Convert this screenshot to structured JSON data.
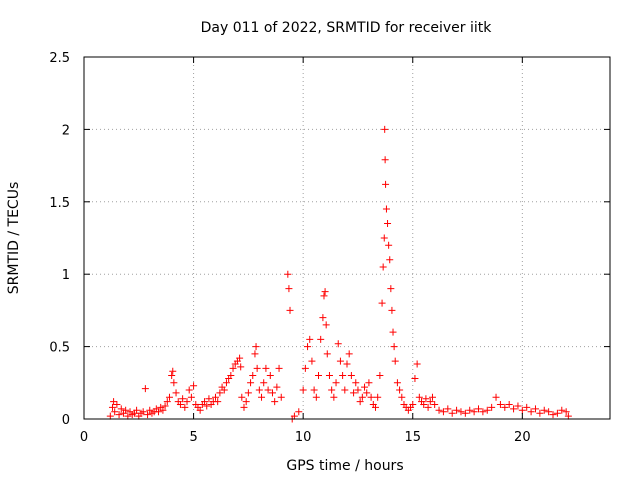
{
  "chart_data": {
    "type": "scatter",
    "title": "Day 011 of 2022, SRMTID for receiver iitk",
    "xlabel": "GPS time / hours",
    "ylabel": "SRMTID / TECUs",
    "xlim": [
      0,
      24
    ],
    "ylim": [
      0,
      2.5
    ],
    "xticks": [
      0,
      5,
      10,
      15,
      20
    ],
    "yticks": [
      0,
      0.5,
      1,
      1.5,
      2,
      2.5
    ],
    "xtick_labels": [
      "0",
      "5",
      "10",
      "15",
      "20"
    ],
    "ytick_labels": [
      "0",
      "0.5",
      "1",
      "1.5",
      "2",
      "2.5"
    ],
    "grid": true,
    "marker": "+",
    "color": "#ff0000",
    "series": [
      {
        "points": [
          [
            1.2,
            0.02
          ],
          [
            1.3,
            0.08
          ],
          [
            1.35,
            0.12
          ],
          [
            1.4,
            0.05
          ],
          [
            1.5,
            0.1
          ],
          [
            1.6,
            0.03
          ],
          [
            1.7,
            0.07
          ],
          [
            1.8,
            0.04
          ],
          [
            1.9,
            0.06
          ],
          [
            2.0,
            0.02
          ],
          [
            2.1,
            0.05
          ],
          [
            2.2,
            0.03
          ],
          [
            2.3,
            0.04
          ],
          [
            2.4,
            0.06
          ],
          [
            2.5,
            0.02
          ],
          [
            2.6,
            0.04
          ],
          [
            2.7,
            0.05
          ],
          [
            2.8,
            0.21
          ],
          [
            2.9,
            0.03
          ],
          [
            3.0,
            0.06
          ],
          [
            3.1,
            0.04
          ],
          [
            3.2,
            0.05
          ],
          [
            3.3,
            0.07
          ],
          [
            3.4,
            0.05
          ],
          [
            3.5,
            0.08
          ],
          [
            3.6,
            0.06
          ],
          [
            3.7,
            0.09
          ],
          [
            3.8,
            0.12
          ],
          [
            3.9,
            0.15
          ],
          [
            4.0,
            0.3
          ],
          [
            4.05,
            0.33
          ],
          [
            4.1,
            0.25
          ],
          [
            4.2,
            0.18
          ],
          [
            4.3,
            0.12
          ],
          [
            4.4,
            0.1
          ],
          [
            4.5,
            0.14
          ],
          [
            4.6,
            0.08
          ],
          [
            4.7,
            0.12
          ],
          [
            4.8,
            0.2
          ],
          [
            4.9,
            0.15
          ],
          [
            5.0,
            0.23
          ],
          [
            5.1,
            0.1
          ],
          [
            5.2,
            0.08
          ],
          [
            5.3,
            0.06
          ],
          [
            5.4,
            0.1
          ],
          [
            5.5,
            0.12
          ],
          [
            5.6,
            0.09
          ],
          [
            5.7,
            0.14
          ],
          [
            5.8,
            0.1
          ],
          [
            5.9,
            0.12
          ],
          [
            6.0,
            0.15
          ],
          [
            6.1,
            0.12
          ],
          [
            6.2,
            0.18
          ],
          [
            6.3,
            0.22
          ],
          [
            6.4,
            0.2
          ],
          [
            6.5,
            0.25
          ],
          [
            6.6,
            0.28
          ],
          [
            6.7,
            0.3
          ],
          [
            6.8,
            0.35
          ],
          [
            6.9,
            0.38
          ],
          [
            7.0,
            0.4
          ],
          [
            7.1,
            0.42
          ],
          [
            7.15,
            0.36
          ],
          [
            7.2,
            0.15
          ],
          [
            7.3,
            0.08
          ],
          [
            7.4,
            0.12
          ],
          [
            7.5,
            0.18
          ],
          [
            7.6,
            0.25
          ],
          [
            7.7,
            0.3
          ],
          [
            7.8,
            0.45
          ],
          [
            7.85,
            0.5
          ],
          [
            7.9,
            0.35
          ],
          [
            8.0,
            0.2
          ],
          [
            8.1,
            0.15
          ],
          [
            8.2,
            0.25
          ],
          [
            8.3,
            0.35
          ],
          [
            8.4,
            0.2
          ],
          [
            8.5,
            0.3
          ],
          [
            8.6,
            0.18
          ],
          [
            8.7,
            0.12
          ],
          [
            8.8,
            0.22
          ],
          [
            8.9,
            0.35
          ],
          [
            9.0,
            0.15
          ],
          [
            9.3,
            1.0
          ],
          [
            9.35,
            0.9
          ],
          [
            9.4,
            0.75
          ],
          [
            9.5,
            0.0
          ],
          [
            9.6,
            0.02
          ],
          [
            9.8,
            0.05
          ],
          [
            10.0,
            0.2
          ],
          [
            10.1,
            0.35
          ],
          [
            10.2,
            0.5
          ],
          [
            10.3,
            0.55
          ],
          [
            10.4,
            0.4
          ],
          [
            10.5,
            0.2
          ],
          [
            10.6,
            0.15
          ],
          [
            10.7,
            0.3
          ],
          [
            10.8,
            0.55
          ],
          [
            10.9,
            0.7
          ],
          [
            10.95,
            0.85
          ],
          [
            11.0,
            0.88
          ],
          [
            11.05,
            0.65
          ],
          [
            11.1,
            0.45
          ],
          [
            11.2,
            0.3
          ],
          [
            11.3,
            0.2
          ],
          [
            11.4,
            0.15
          ],
          [
            11.5,
            0.25
          ],
          [
            11.6,
            0.52
          ],
          [
            11.7,
            0.4
          ],
          [
            11.8,
            0.3
          ],
          [
            11.9,
            0.2
          ],
          [
            12.0,
            0.38
          ],
          [
            12.1,
            0.45
          ],
          [
            12.2,
            0.3
          ],
          [
            12.3,
            0.18
          ],
          [
            12.4,
            0.25
          ],
          [
            12.5,
            0.2
          ],
          [
            12.6,
            0.12
          ],
          [
            12.7,
            0.15
          ],
          [
            12.8,
            0.22
          ],
          [
            12.9,
            0.18
          ],
          [
            13.0,
            0.25
          ],
          [
            13.1,
            0.15
          ],
          [
            13.2,
            0.1
          ],
          [
            13.3,
            0.08
          ],
          [
            13.4,
            0.15
          ],
          [
            13.5,
            0.3
          ],
          [
            13.6,
            0.8
          ],
          [
            13.65,
            1.05
          ],
          [
            13.7,
            1.25
          ],
          [
            13.72,
            2.0
          ],
          [
            13.74,
            1.79
          ],
          [
            13.76,
            1.62
          ],
          [
            13.8,
            1.45
          ],
          [
            13.85,
            1.35
          ],
          [
            13.9,
            1.2
          ],
          [
            13.95,
            1.1
          ],
          [
            14.0,
            0.9
          ],
          [
            14.05,
            0.75
          ],
          [
            14.1,
            0.6
          ],
          [
            14.15,
            0.5
          ],
          [
            14.2,
            0.4
          ],
          [
            14.3,
            0.25
          ],
          [
            14.4,
            0.2
          ],
          [
            14.5,
            0.15
          ],
          [
            14.6,
            0.1
          ],
          [
            14.7,
            0.08
          ],
          [
            14.8,
            0.06
          ],
          [
            14.9,
            0.08
          ],
          [
            15.0,
            0.1
          ],
          [
            15.1,
            0.28
          ],
          [
            15.2,
            0.38
          ],
          [
            15.3,
            0.15
          ],
          [
            15.4,
            0.12
          ],
          [
            15.5,
            0.1
          ],
          [
            15.6,
            0.14
          ],
          [
            15.7,
            0.08
          ],
          [
            15.8,
            0.12
          ],
          [
            15.9,
            0.15
          ],
          [
            16.0,
            0.1
          ],
          [
            16.2,
            0.06
          ],
          [
            16.4,
            0.05
          ],
          [
            16.6,
            0.07
          ],
          [
            16.8,
            0.04
          ],
          [
            17.0,
            0.06
          ],
          [
            17.2,
            0.05
          ],
          [
            17.4,
            0.04
          ],
          [
            17.6,
            0.06
          ],
          [
            17.8,
            0.05
          ],
          [
            18.0,
            0.07
          ],
          [
            18.2,
            0.05
          ],
          [
            18.4,
            0.06
          ],
          [
            18.6,
            0.08
          ],
          [
            18.8,
            0.15
          ],
          [
            19.0,
            0.1
          ],
          [
            19.2,
            0.08
          ],
          [
            19.4,
            0.1
          ],
          [
            19.6,
            0.07
          ],
          [
            19.8,
            0.09
          ],
          [
            20.0,
            0.06
          ],
          [
            20.2,
            0.08
          ],
          [
            20.4,
            0.05
          ],
          [
            20.6,
            0.07
          ],
          [
            20.8,
            0.04
          ],
          [
            21.0,
            0.06
          ],
          [
            21.2,
            0.05
          ],
          [
            21.4,
            0.03
          ],
          [
            21.6,
            0.04
          ],
          [
            21.8,
            0.06
          ],
          [
            22.0,
            0.05
          ],
          [
            22.1,
            0.02
          ]
        ]
      }
    ]
  }
}
